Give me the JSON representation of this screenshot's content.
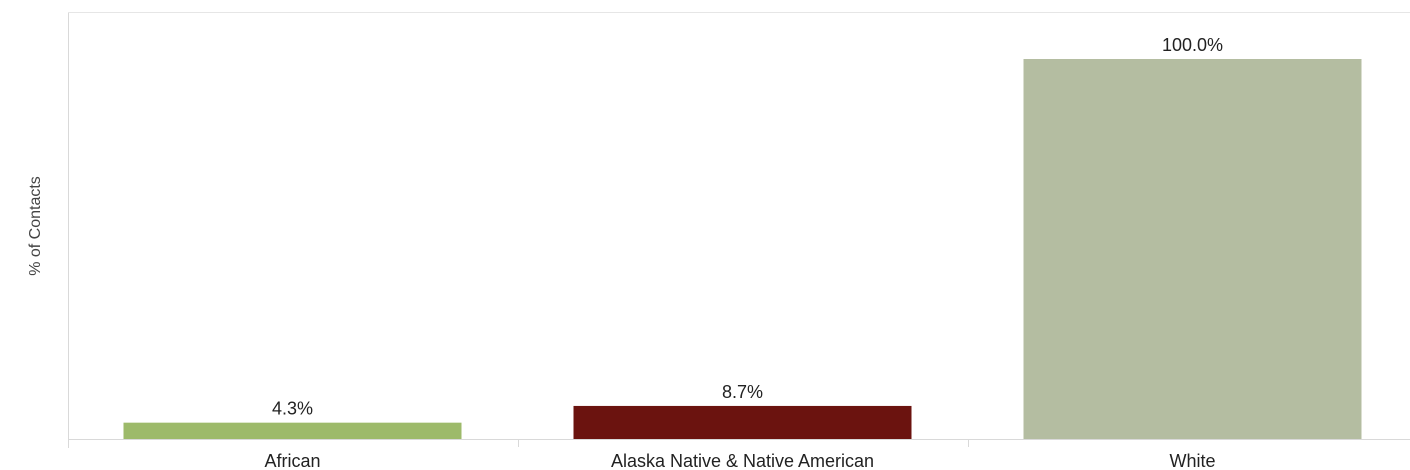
{
  "chart_data": {
    "type": "bar",
    "title": "",
    "xlabel": "",
    "ylabel": "% of Contacts",
    "ylim": [
      0,
      100
    ],
    "grid": false,
    "categories": [
      "African",
      "Alaska Native & Native American",
      "White"
    ],
    "values": [
      4.3,
      8.7,
      100.0
    ],
    "value_labels": [
      "4.3%",
      "8.7%",
      "100.0%"
    ],
    "colors": [
      "#9dba6a",
      "#6b130f",
      "#b4bda1"
    ]
  }
}
